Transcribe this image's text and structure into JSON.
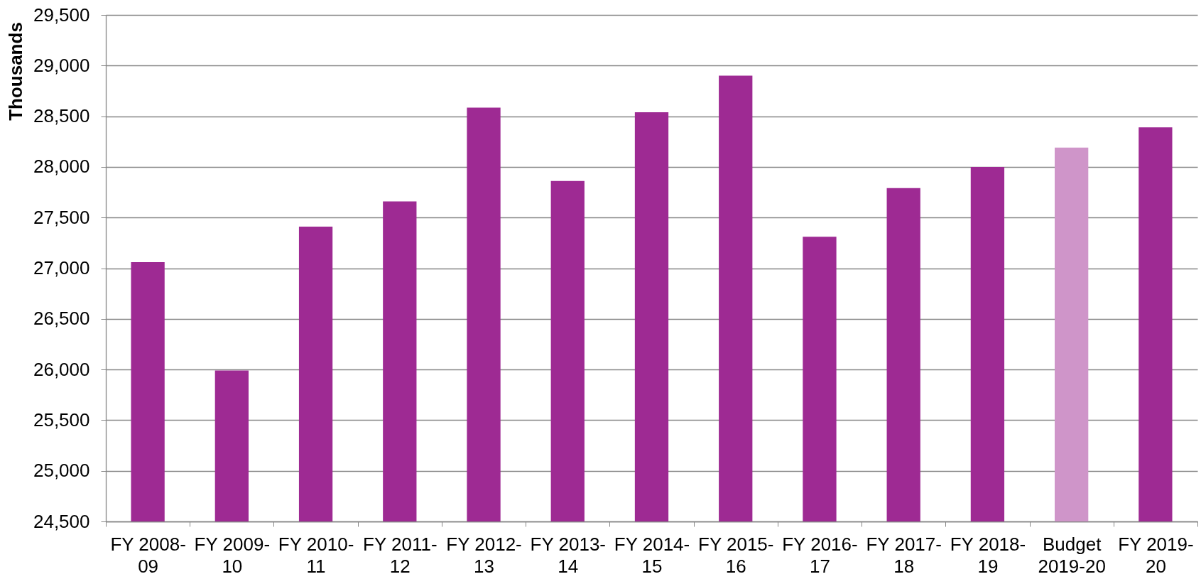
{
  "chart_data": {
    "type": "bar",
    "ylabel": "Thousands",
    "categories": [
      "FY 2008-09",
      "FY 2009-10",
      "FY 2010-11",
      "FY 2011-12",
      "FY 2012-13",
      "FY 2013-14",
      "FY 2014-15",
      "FY 2015-16",
      "FY 2016-17",
      "FY 2017-18",
      "FY 2018-19",
      "Budget 2019-20",
      "FY 2019-20"
    ],
    "values": [
      27060,
      25990,
      27410,
      27660,
      28585,
      27860,
      28540,
      28900,
      27310,
      27790,
      28000,
      28190,
      28390
    ],
    "colors": [
      "#9e2a93",
      "#9e2a93",
      "#9e2a93",
      "#9e2a93",
      "#9e2a93",
      "#9e2a93",
      "#9e2a93",
      "#9e2a93",
      "#9e2a93",
      "#9e2a93",
      "#9e2a93",
      "#cf95c9",
      "#9e2a93"
    ],
    "ylim": [
      24500,
      29500
    ],
    "yticks": [
      {
        "value": 24500,
        "label": "24,500"
      },
      {
        "value": 25000,
        "label": "25,000"
      },
      {
        "value": 25500,
        "label": "25,500"
      },
      {
        "value": 26000,
        "label": "26,000"
      },
      {
        "value": 26500,
        "label": "26,500"
      },
      {
        "value": 27000,
        "label": "27,000"
      },
      {
        "value": 27500,
        "label": "27,500"
      },
      {
        "value": 28000,
        "label": "28,000"
      },
      {
        "value": 28500,
        "label": "28,500"
      },
      {
        "value": 29000,
        "label": "29,000"
      },
      {
        "value": 29500,
        "label": "29,500"
      }
    ],
    "grid": "y"
  }
}
